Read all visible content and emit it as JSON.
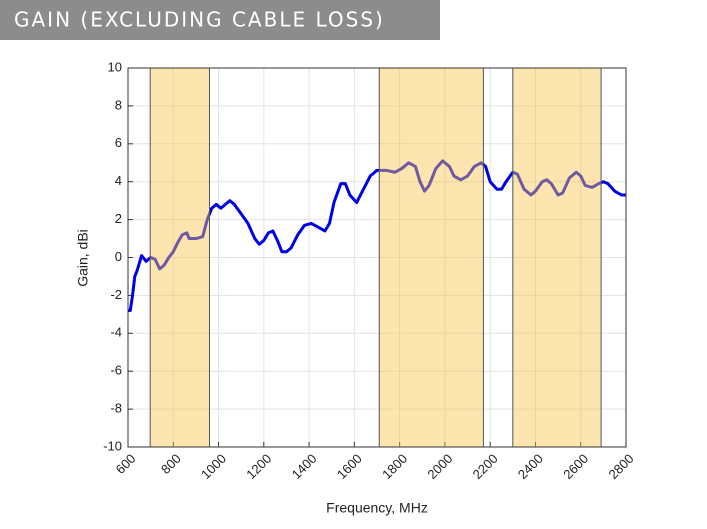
{
  "chart_data": {
    "type": "line",
    "title": "GAIN (EXCLUDING CABLE LOSS)",
    "x_label": "Frequency, MHz",
    "y_label": "Gain, dBi",
    "xlim": [
      600,
      2800
    ],
    "ylim": [
      -10,
      10
    ],
    "xticks": [
      600,
      800,
      1000,
      1200,
      1400,
      1600,
      1800,
      2000,
      2200,
      2400,
      2600,
      2800
    ],
    "yticks": [
      -10,
      -8,
      -6,
      -4,
      -2,
      0,
      2,
      4,
      6,
      8,
      10
    ],
    "grid": true,
    "shaded_regions": [
      [
        698,
        960
      ],
      [
        1710,
        2170
      ],
      [
        2300,
        2690
      ]
    ],
    "shade_color": "#f9c54d",
    "series": [
      {
        "color": "#0000e6",
        "x": [
          600,
          610,
          620,
          630,
          640,
          650,
          660,
          680,
          700,
          720,
          740,
          760,
          780,
          800,
          820,
          840,
          860,
          870,
          900,
          930,
          950,
          970,
          990,
          1010,
          1030,
          1050,
          1070,
          1100,
          1130,
          1160,
          1180,
          1200,
          1220,
          1240,
          1260,
          1280,
          1300,
          1320,
          1350,
          1380,
          1410,
          1440,
          1470,
          1490,
          1510,
          1540,
          1560,
          1580,
          1610,
          1640,
          1670,
          1700,
          1740,
          1780,
          1810,
          1840,
          1870,
          1890,
          1910,
          1930,
          1960,
          1990,
          2020,
          2040,
          2070,
          2100,
          2130,
          2160,
          2180,
          2200,
          2230,
          2250,
          2270,
          2300,
          2320,
          2350,
          2380,
          2400,
          2430,
          2450,
          2470,
          2500,
          2520,
          2550,
          2580,
          2600,
          2620,
          2650,
          2680,
          2700,
          2720,
          2750,
          2780,
          2800
        ],
        "values": [
          -2.8,
          -2.8,
          -2,
          -1,
          -0.7,
          -0.3,
          0.1,
          -0.2,
          0,
          -0.1,
          -0.6,
          -0.4,
          0,
          0.3,
          0.8,
          1.2,
          1.3,
          1.0,
          1.0,
          1.1,
          2.0,
          2.6,
          2.8,
          2.6,
          2.8,
          3.0,
          2.8,
          2.3,
          1.8,
          1.0,
          0.7,
          0.9,
          1.3,
          1.4,
          0.9,
          0.3,
          0.3,
          0.5,
          1.2,
          1.7,
          1.8,
          1.6,
          1.4,
          1.8,
          2.9,
          3.9,
          3.9,
          3.3,
          2.9,
          3.6,
          4.3,
          4.6,
          4.6,
          4.5,
          4.7,
          5.0,
          4.8,
          4.0,
          3.5,
          3.8,
          4.7,
          5.1,
          4.8,
          4.3,
          4.1,
          4.3,
          4.8,
          5.0,
          4.8,
          4.0,
          3.6,
          3.6,
          4.0,
          4.5,
          4.4,
          3.6,
          3.3,
          3.5,
          4.0,
          4.1,
          3.9,
          3.3,
          3.4,
          4.2,
          4.5,
          4.3,
          3.8,
          3.7,
          3.9,
          4.0,
          3.9,
          3.5,
          3.3,
          3.3
        ]
      }
    ]
  }
}
